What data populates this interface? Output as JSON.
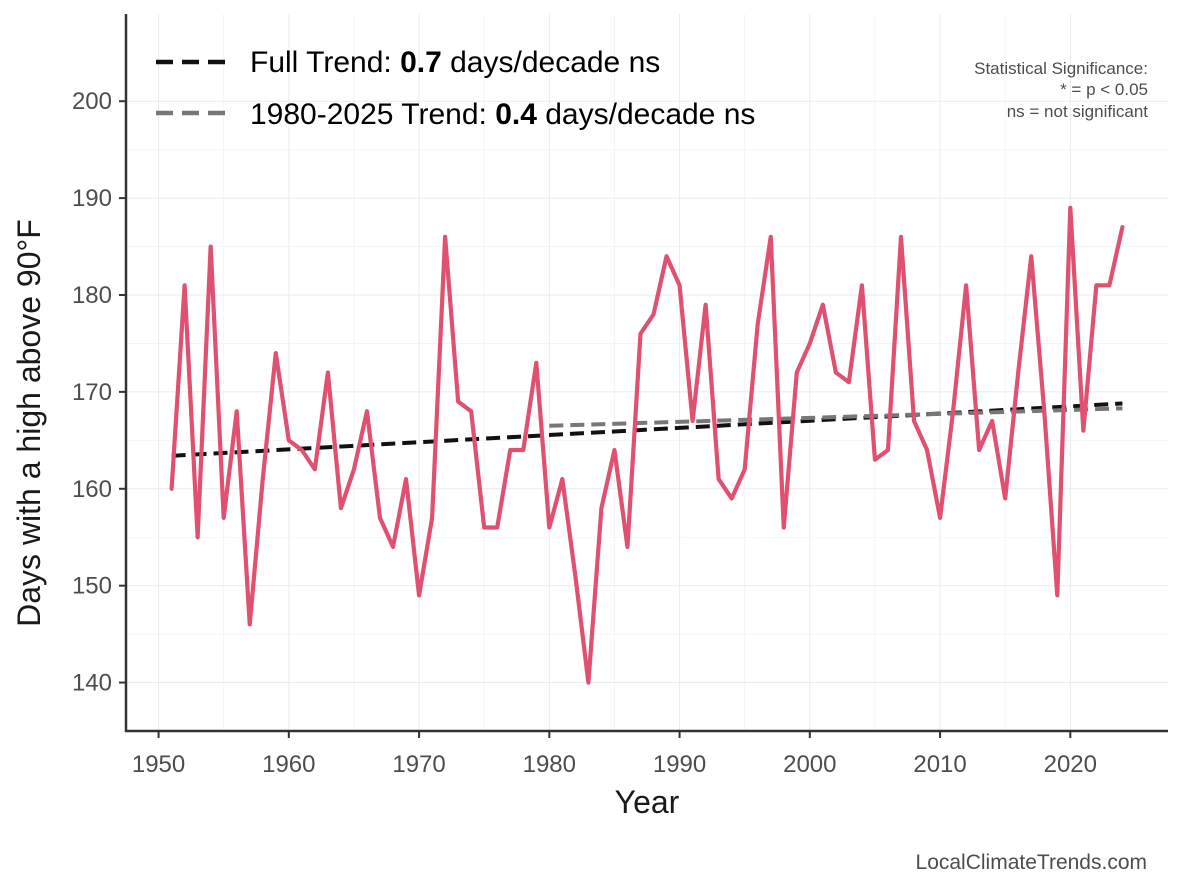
{
  "chart_data": {
    "type": "line",
    "xlabel": "Year",
    "ylabel": "Days with a high above 90°F",
    "xlim": [
      1947.5,
      2027.5
    ],
    "ylim": [
      135,
      209
    ],
    "x_ticks": [
      1950,
      1960,
      1970,
      1980,
      1990,
      2000,
      2010,
      2020
    ],
    "y_ticks": [
      140,
      150,
      160,
      170,
      180,
      190,
      200
    ],
    "grid": true,
    "colors": {
      "series": "#e05070",
      "full_trend": "#111111",
      "recent_trend": "#777777",
      "grid": "#ebebeb",
      "axis": "#333333"
    },
    "series": [
      {
        "x": [
          1951,
          1952,
          1953,
          1954,
          1955,
          1956,
          1957,
          1958,
          1959,
          1960,
          1961,
          1962,
          1963,
          1964,
          1965,
          1966,
          1967,
          1968,
          1969,
          1970,
          1971,
          1972,
          1973,
          1974,
          1975,
          1976,
          1977,
          1978,
          1979,
          1980,
          1981,
          1982,
          1983,
          1984,
          1985,
          1986,
          1987,
          1988,
          1989,
          1990,
          1991,
          1992,
          1993,
          1994,
          1995,
          1996,
          1997,
          1998,
          1999,
          2000,
          2001,
          2002,
          2003,
          2004,
          2005,
          2006,
          2007,
          2008,
          2009,
          2010,
          2011,
          2012,
          2013,
          2014,
          2015,
          2016,
          2017,
          2018,
          2019,
          2020,
          2021,
          2022,
          2023,
          2024
        ],
        "values": [
          160,
          181,
          155,
          185,
          157,
          168,
          146,
          161,
          174,
          165,
          164,
          162,
          172,
          158,
          162,
          168,
          157,
          154,
          161,
          149,
          157,
          186,
          169,
          168,
          156,
          156,
          164,
          164,
          173,
          156,
          161,
          151,
          140,
          158,
          164,
          154,
          176,
          178,
          184,
          181,
          167,
          179,
          161,
          159,
          162,
          177,
          186,
          156,
          172,
          175,
          179,
          172,
          171,
          181,
          163,
          164,
          186,
          167,
          164,
          157,
          168,
          181,
          164,
          167,
          159,
          172,
          184,
          168,
          149,
          189,
          166,
          181,
          181,
          187
        ]
      }
    ],
    "trends": [
      {
        "label_prefix": "Full Trend: ",
        "label_value": "0.7",
        "label_suffix": " days/decade ns",
        "style": "dashed",
        "x": [
          1951,
          2024
        ],
        "y": [
          163.4,
          168.8
        ]
      },
      {
        "label_prefix": "1980-2025 Trend: ",
        "label_value": "0.4",
        "label_suffix": " days/decade ns",
        "style": "dashed",
        "x": [
          1980,
          2024
        ],
        "y": [
          166.5,
          168.3
        ]
      }
    ],
    "significance_note": [
      "Statistical Significance:",
      "* = p < 0.05",
      "ns = not significant"
    ],
    "source": "LocalClimateTrends.com"
  }
}
